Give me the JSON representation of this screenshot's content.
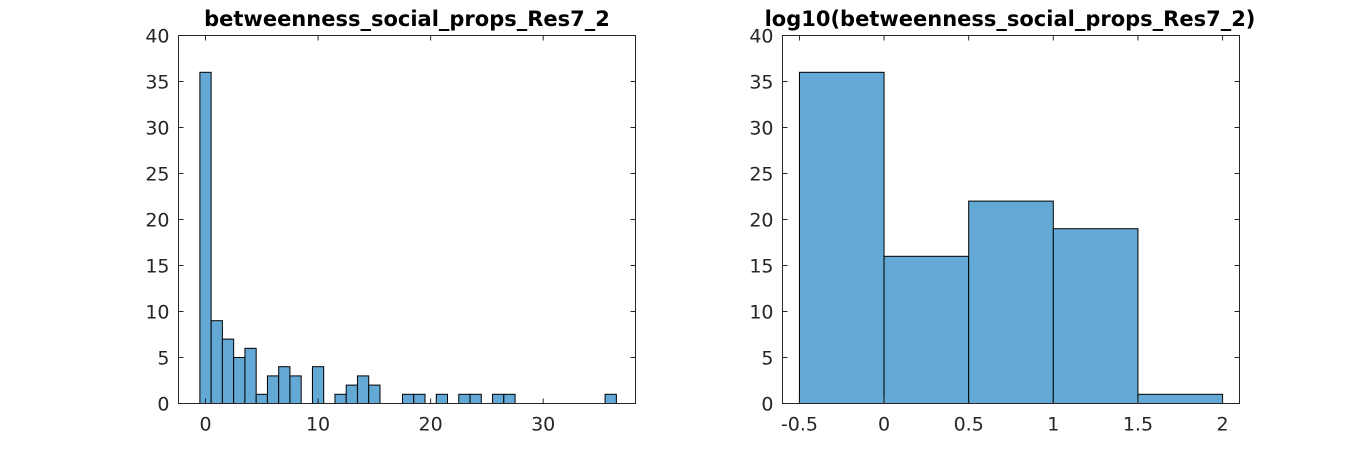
{
  "chart_data": [
    {
      "type": "bar",
      "title": "betweenness_social_props_Res7_2",
      "xlabel": "",
      "ylabel": "",
      "xlim": [
        -2.4,
        38.2
      ],
      "ylim": [
        0,
        40
      ],
      "xticks": [
        0,
        10,
        20,
        30
      ],
      "xtick_labels": [
        "0",
        "10",
        "20",
        "30"
      ],
      "yticks": [
        0,
        5,
        10,
        15,
        20,
        25,
        30,
        35,
        40
      ],
      "ytick_labels": [
        "0",
        "5",
        "10",
        "15",
        "20",
        "25",
        "30",
        "35",
        "40"
      ],
      "bin_width": 1,
      "bin_start": -0.5,
      "values": [
        36,
        9,
        7,
        5,
        6,
        1,
        3,
        4,
        3,
        0,
        4,
        0,
        1,
        2,
        3,
        2,
        0,
        0,
        1,
        1,
        0,
        1,
        0,
        1,
        1,
        0,
        1,
        1,
        0,
        0,
        0,
        0,
        0,
        0,
        0,
        0,
        1
      ],
      "color": "#64a9d6"
    },
    {
      "type": "bar",
      "title": "log10(betweenness_social_props_Res7_2)",
      "xlabel": "",
      "ylabel": "",
      "xlim": [
        -0.6,
        2.1
      ],
      "ylim": [
        0,
        40
      ],
      "xticks": [
        -0.5,
        0,
        0.5,
        1,
        1.5,
        2
      ],
      "xtick_labels": [
        "-0.5",
        "0",
        "0.5",
        "1",
        "1.5",
        "2"
      ],
      "yticks": [
        0,
        5,
        10,
        15,
        20,
        25,
        30,
        35,
        40
      ],
      "ytick_labels": [
        "0",
        "5",
        "10",
        "15",
        "20",
        "25",
        "30",
        "35",
        "40"
      ],
      "bin_width": 0.5,
      "bin_start": -0.5,
      "values": [
        36,
        16,
        22,
        19,
        1
      ],
      "color": "#64a9d6"
    }
  ]
}
